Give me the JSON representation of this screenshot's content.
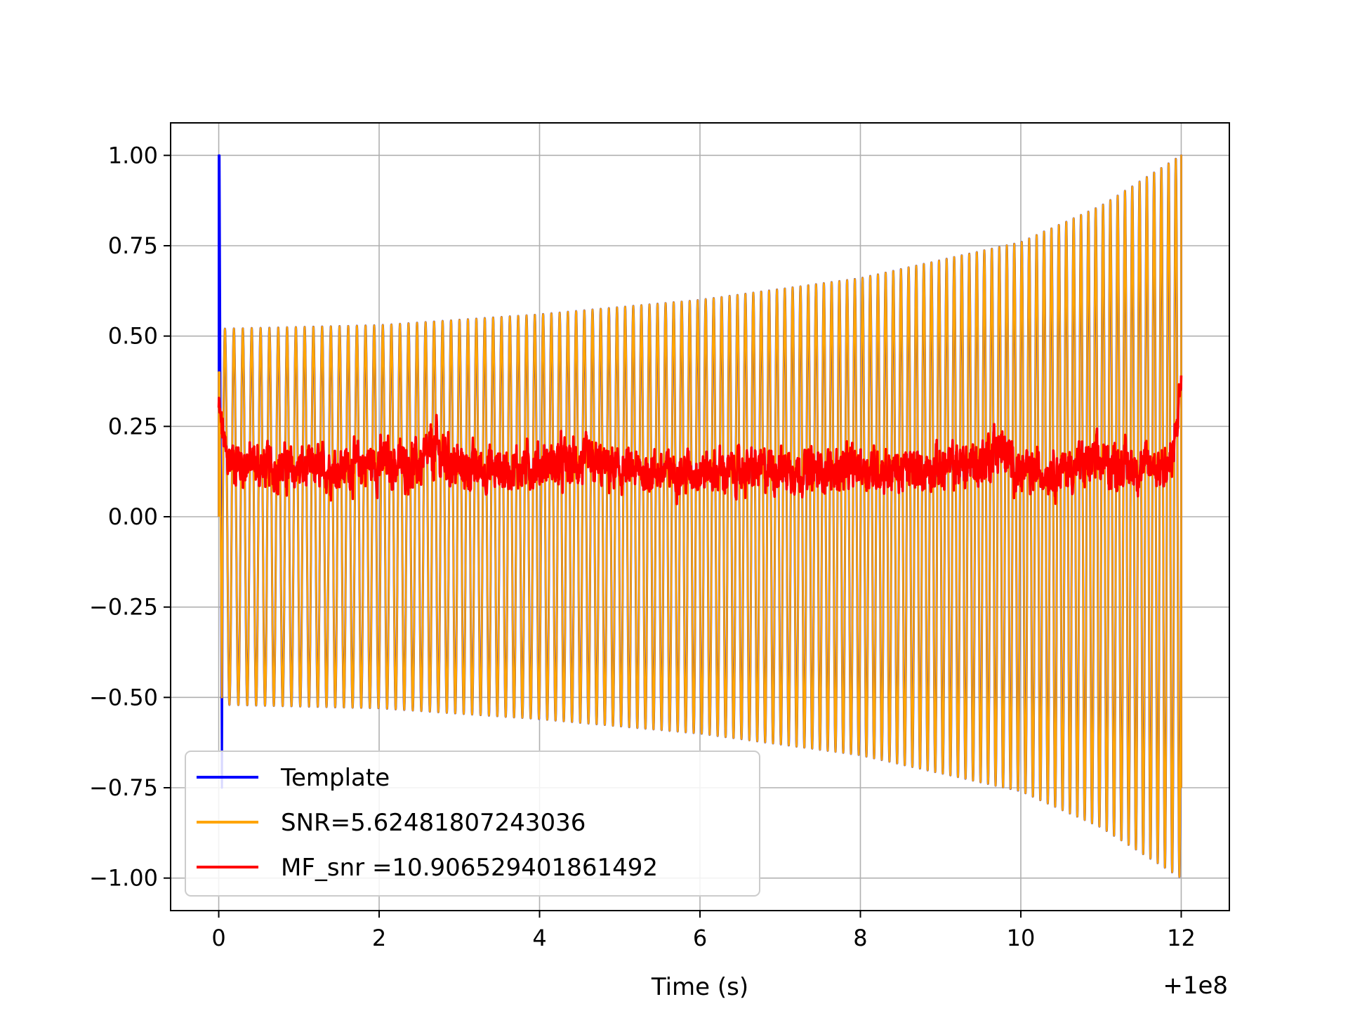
{
  "chart_data": {
    "type": "line",
    "title": "",
    "xlabel": "Time (s)",
    "ylabel": "",
    "x_offset_label": "+1e8",
    "xlim": [
      -0.6,
      12.6
    ],
    "ylim": [
      -1.09,
      1.09
    ],
    "xticks": [
      0,
      2,
      4,
      6,
      8,
      10,
      12
    ],
    "xtick_labels": [
      "0",
      "2",
      "4",
      "6",
      "8",
      "10",
      "12"
    ],
    "yticks": [
      1.0,
      0.75,
      0.5,
      0.25,
      0.0,
      -0.25,
      -0.5,
      -0.75,
      -1.0
    ],
    "ytick_labels": [
      "1.00",
      "0.75",
      "0.50",
      "0.25",
      "0.00",
      "−0.25",
      "−0.50",
      "−0.75",
      "−1.00"
    ],
    "grid": true,
    "legend_position": "lower-left",
    "series": [
      {
        "name": "Template",
        "color": "#0000ff",
        "kind": "chirp",
        "t_start": 0.0,
        "t_end": 12.0,
        "envelope": [
          [
            0.0,
            0.52
          ],
          [
            2.0,
            0.53
          ],
          [
            4.0,
            0.56
          ],
          [
            6.0,
            0.6
          ],
          [
            8.0,
            0.66
          ],
          [
            10.0,
            0.76
          ],
          [
            11.0,
            0.86
          ],
          [
            12.0,
            1.0
          ]
        ],
        "cycles": 120,
        "start_spike": [
          1.0,
          -0.75
        ]
      },
      {
        "name": "SNR=5.62481807243036",
        "color": "#ffa500",
        "kind": "chirp",
        "t_start": 0.0,
        "t_end": 12.0,
        "envelope": [
          [
            0.0,
            0.52
          ],
          [
            2.0,
            0.53
          ],
          [
            4.0,
            0.56
          ],
          [
            6.0,
            0.6
          ],
          [
            8.0,
            0.66
          ],
          [
            10.0,
            0.76
          ],
          [
            11.0,
            0.86
          ],
          [
            12.0,
            1.0
          ]
        ],
        "cycles": 120,
        "start_spike": [
          0.4,
          -0.5
        ]
      },
      {
        "name": "MF_snr =10.906529401861492",
        "color": "#ff0000",
        "kind": "noise",
        "x": [
          0.0,
          0.1,
          0.5,
          1.0,
          1.5,
          2.0,
          2.5,
          2.7,
          3.0,
          3.5,
          4.0,
          4.5,
          5.0,
          5.5,
          6.0,
          6.5,
          7.0,
          7.5,
          8.0,
          8.5,
          9.0,
          9.5,
          9.7,
          10.0,
          10.5,
          11.0,
          11.5,
          11.9,
          12.0
        ],
        "y_low": [
          0.2,
          0.02,
          0.0,
          0.0,
          0.0,
          0.0,
          0.0,
          0.0,
          0.0,
          0.0,
          0.0,
          0.0,
          0.0,
          0.0,
          0.0,
          0.0,
          0.0,
          0.0,
          0.0,
          0.0,
          0.0,
          0.0,
          0.02,
          0.0,
          0.0,
          0.0,
          0.0,
          0.0,
          0.28
        ],
        "y_high": [
          0.4,
          0.3,
          0.28,
          0.26,
          0.27,
          0.3,
          0.28,
          0.37,
          0.27,
          0.26,
          0.28,
          0.3,
          0.25,
          0.25,
          0.25,
          0.25,
          0.27,
          0.25,
          0.27,
          0.25,
          0.27,
          0.3,
          0.37,
          0.24,
          0.26,
          0.3,
          0.27,
          0.3,
          0.49
        ]
      }
    ]
  }
}
